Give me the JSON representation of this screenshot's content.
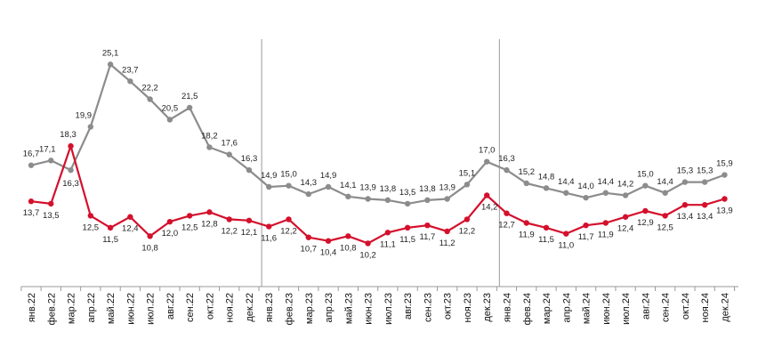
{
  "chart_data": {
    "type": "line",
    "categories": [
      "янв.22",
      "фев.22",
      "мар.22",
      "апр.22",
      "май.22",
      "июн.22",
      "июл.22",
      "авг.22",
      "сен.22",
      "окт.22",
      "ноя.22",
      "дек.22",
      "янв.23",
      "фев.23",
      "мар.23",
      "апр.23",
      "май.23",
      "июн.23",
      "июл.23",
      "авг.23",
      "сен.23",
      "окт.23",
      "ноя.23",
      "дек.23",
      "янв.24",
      "фев.24",
      "мар.24",
      "апр.24",
      "май.24",
      "июн.24",
      "июл.24",
      "авг.24",
      "сен.24",
      "окт.24",
      "ноя.24",
      "дек.24"
    ],
    "series": [
      {
        "color": "#8c8c8c",
        "values": [
          16.7,
          17.1,
          16.3,
          19.9,
          25.1,
          23.7,
          22.2,
          20.5,
          21.5,
          18.2,
          17.6,
          16.3,
          14.9,
          15.0,
          14.3,
          14.9,
          14.1,
          13.9,
          13.8,
          13.5,
          13.8,
          13.9,
          15.1,
          17.0,
          16.3,
          15.2,
          14.8,
          14.4,
          14.0,
          14.4,
          14.2,
          15.0,
          14.4,
          15.3,
          15.3,
          15.9
        ],
        "labels": [
          "16,7",
          "17,1",
          "16,3",
          "19,9",
          "25,1",
          "23,7",
          "22,2",
          "20,5",
          "21,5",
          "18,2",
          "17,6",
          "16,3",
          "14,9",
          "15,0",
          "14,3",
          "14,9",
          "14,1",
          "13,9",
          "13,8",
          "13,5",
          "13,8",
          "13,9",
          "15,1",
          "17,0",
          "16,3",
          "15,2",
          "14,8",
          "14,4",
          "14,0",
          "14,4",
          "14,2",
          "15,0",
          "14,4",
          "15,3",
          "15,3",
          "15,9"
        ]
      },
      {
        "color": "#d4102c",
        "values": [
          13.7,
          13.5,
          18.3,
          12.5,
          11.5,
          12.4,
          10.8,
          12.0,
          12.5,
          12.8,
          12.2,
          12.1,
          11.6,
          12.2,
          10.7,
          10.4,
          10.8,
          10.2,
          11.1,
          11.5,
          11.7,
          11.2,
          12.2,
          14.2,
          12.7,
          11.9,
          11.5,
          11.0,
          11.7,
          11.9,
          12.4,
          12.9,
          12.5,
          13.4,
          13.4,
          13.9
        ],
        "labels": [
          "13,7",
          "13,5",
          "18,3",
          "12,5",
          "11,5",
          "12,4",
          "10,8",
          "12,0",
          "12,5",
          "12,8",
          "12,2",
          "12,1",
          "11,6",
          "12,2",
          "10,7",
          "10,4",
          "10,8",
          "10,2",
          "11,1",
          "11,5",
          "11,7",
          "11,2",
          "12,2",
          "14,2",
          "12,7",
          "11,9",
          "11,5",
          "11,0",
          "11,7",
          "11,9",
          "12,4",
          "12,9",
          "12,5",
          "13,4",
          "13,4",
          "13,9"
        ]
      }
    ],
    "ylim": [
      6.6,
      27.5
    ],
    "grid": false,
    "separators_after": [
      "дек.22",
      "дек.23"
    ],
    "axis_color": "#9a9a9a"
  }
}
